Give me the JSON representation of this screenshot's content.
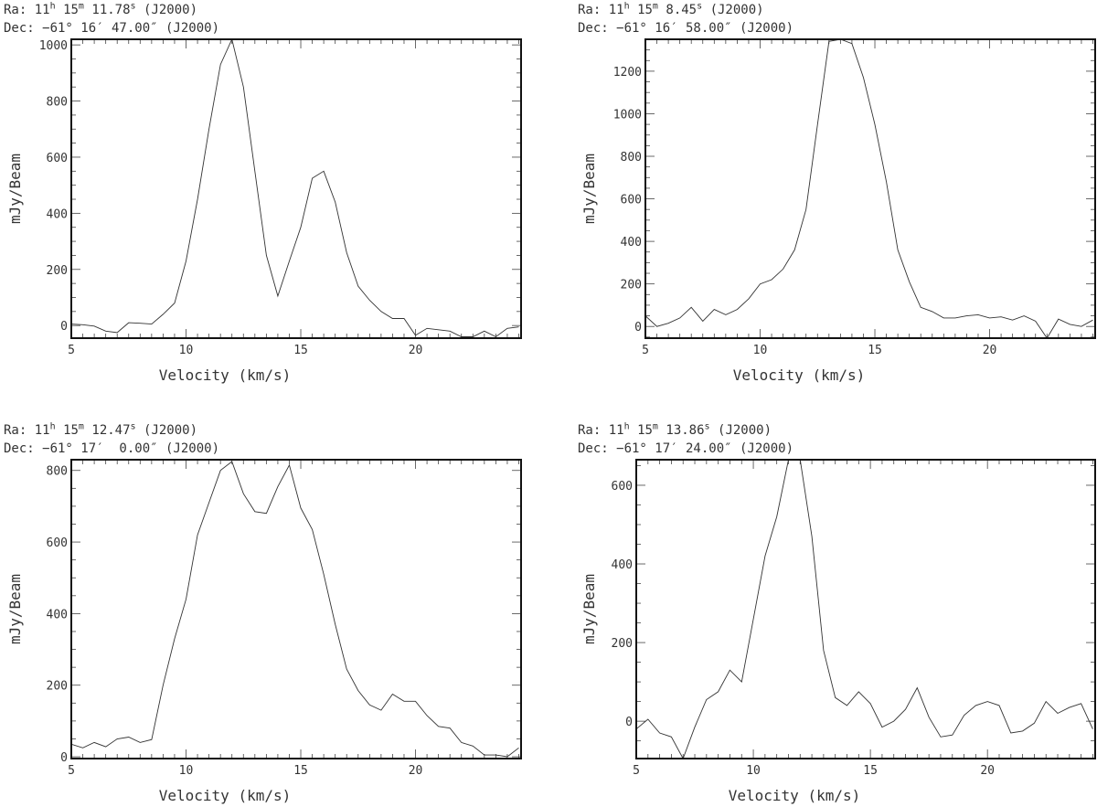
{
  "chart_data": [
    {
      "type": "line",
      "ra": {
        "label": "Ra:",
        "h": "11",
        "h_unit": "h",
        "m": "15",
        "m_unit": "m",
        "s": "11.78",
        "s_unit": "s",
        "epoch": "(J2000)"
      },
      "dec": "Dec: −61° 16′ 47.00″ (J2000)",
      "xlabel": "Velocity (km/s)",
      "ylabel": "mJy/Beam",
      "xlim": [
        5,
        24.6
      ],
      "ylim": [
        -45,
        1020
      ],
      "xticks": [
        5,
        10,
        15,
        20
      ],
      "yticks": [
        0,
        200,
        400,
        600,
        800,
        1000
      ],
      "x": [
        5,
        5.5,
        6,
        6.5,
        7,
        7.5,
        8,
        8.5,
        9,
        9.5,
        10,
        10.5,
        11,
        11.5,
        12,
        12.5,
        13,
        13.5,
        14,
        14.5,
        15,
        15.5,
        16,
        16.5,
        17,
        17.5,
        18,
        18.5,
        19,
        19.5,
        20,
        20.5,
        21,
        21.5,
        22,
        22.5,
        23,
        23.5,
        24,
        24.5
      ],
      "y": [
        5,
        3,
        -2,
        -20,
        -25,
        10,
        8,
        5,
        40,
        80,
        230,
        450,
        700,
        930,
        1020,
        850,
        550,
        250,
        105,
        230,
        350,
        525,
        550,
        440,
        260,
        140,
        90,
        50,
        25,
        25,
        -35,
        -10,
        -15,
        -20,
        -40,
        -40,
        -20,
        -40,
        -10,
        -5
      ]
    },
    {
      "type": "line",
      "ra": {
        "label": "Ra:",
        "h": "11",
        "h_unit": "h",
        "m": "15",
        "m_unit": "m",
        "s": "8.45",
        "s_unit": "s",
        "epoch": "(J2000)"
      },
      "dec": "Dec: −61° 16′ 58.00″ (J2000)",
      "xlabel": "Velocity (km/s)",
      "ylabel": "mJy/Beam",
      "xlim": [
        5,
        24.6
      ],
      "ylim": [
        -55,
        1350
      ],
      "xticks": [
        5,
        10,
        15,
        20
      ],
      "yticks": [
        0,
        200,
        400,
        600,
        800,
        1000,
        1200
      ],
      "x": [
        5,
        5.5,
        6,
        6.5,
        7,
        7.5,
        8,
        8.5,
        9,
        9.5,
        10,
        10.5,
        11,
        11.5,
        12,
        12.5,
        13,
        13.5,
        14,
        14.5,
        15,
        15.5,
        16,
        16.5,
        17,
        17.5,
        18,
        18.5,
        19,
        19.5,
        20,
        20.5,
        21,
        21.5,
        22,
        22.5,
        23,
        23.5,
        24,
        24.5
      ],
      "y": [
        50,
        0,
        15,
        40,
        90,
        25,
        80,
        55,
        80,
        130,
        200,
        220,
        270,
        360,
        550,
        950,
        1340,
        1350,
        1330,
        1170,
        950,
        680,
        360,
        210,
        90,
        70,
        40,
        40,
        50,
        55,
        40,
        45,
        30,
        50,
        25,
        -55,
        35,
        10,
        0,
        30
      ]
    },
    {
      "type": "line",
      "ra": {
        "label": "Ra:",
        "h": "11",
        "h_unit": "h",
        "m": "15",
        "m_unit": "m",
        "s": "12.47",
        "s_unit": "s",
        "epoch": "(J2000)"
      },
      "dec": "Dec: −61° 17′  0.00″ (J2000)",
      "xlabel": "Velocity (km/s)",
      "ylabel": "mJy/Beam",
      "xlim": [
        5,
        24.6
      ],
      "ylim": [
        -5,
        830
      ],
      "xticks": [
        5,
        10,
        15,
        20
      ],
      "yticks": [
        0,
        200,
        400,
        600,
        800
      ],
      "x": [
        5,
        5.5,
        6,
        6.5,
        7,
        7.5,
        8,
        8.5,
        9,
        9.5,
        10,
        10.5,
        11,
        11.5,
        12,
        12.5,
        13,
        13.5,
        14,
        14.5,
        15,
        15.5,
        16,
        16.5,
        17,
        17.5,
        18,
        18.5,
        19,
        19.5,
        20,
        20.5,
        21,
        21.5,
        22,
        22.5,
        23,
        23.5,
        24,
        24.5
      ],
      "y": [
        35,
        25,
        40,
        28,
        50,
        55,
        40,
        48,
        200,
        330,
        440,
        620,
        710,
        800,
        825,
        735,
        685,
        680,
        755,
        815,
        695,
        635,
        510,
        370,
        245,
        185,
        145,
        130,
        175,
        155,
        155,
        115,
        85,
        80,
        40,
        30,
        5,
        5,
        0,
        25
      ]
    },
    {
      "type": "line",
      "ra": {
        "label": "Ra:",
        "h": "11",
        "h_unit": "h",
        "m": "15",
        "m_unit": "m",
        "s": "13.86",
        "s_unit": "s",
        "epoch": "(J2000)"
      },
      "dec": "Dec: −61° 17′ 24.00″ (J2000)",
      "xlabel": "Velocity (km/s)",
      "ylabel": "mJy/Beam",
      "xlim": [
        5,
        24.6
      ],
      "ylim": [
        -95,
        665
      ],
      "xticks": [
        5,
        10,
        15,
        20
      ],
      "yticks": [
        0,
        200,
        400,
        600
      ],
      "x": [
        5,
        5.5,
        6,
        6.5,
        7,
        7.5,
        8,
        8.5,
        9,
        9.5,
        10,
        10.5,
        11,
        11.5,
        12,
        12.5,
        13,
        13.5,
        14,
        14.5,
        15,
        15.5,
        16,
        16.5,
        17,
        17.5,
        18,
        18.5,
        19,
        19.5,
        20,
        20.5,
        21,
        21.5,
        22,
        22.5,
        23,
        23.5,
        24,
        24.5
      ],
      "y": [
        -20,
        5,
        -30,
        -40,
        -95,
        -15,
        55,
        75,
        130,
        100,
        260,
        420,
        520,
        665,
        665,
        470,
        180,
        60,
        40,
        75,
        45,
        -15,
        0,
        30,
        85,
        10,
        -40,
        -35,
        15,
        40,
        50,
        40,
        -30,
        -25,
        -5,
        50,
        20,
        35,
        45,
        -20
      ]
    }
  ]
}
